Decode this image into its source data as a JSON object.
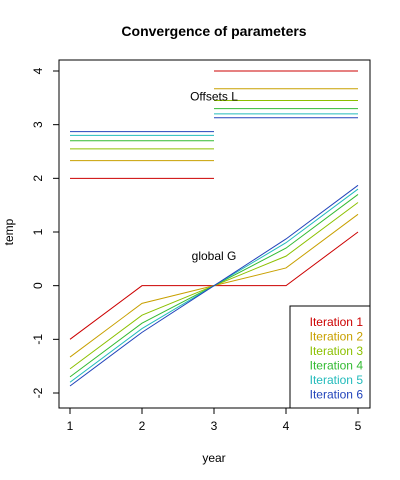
{
  "chart_data": {
    "type": "line",
    "title": "Convergence of parameters",
    "xlabel": "year",
    "ylabel": "temp",
    "xlim": [
      1,
      5
    ],
    "ylim": [
      -2,
      4
    ],
    "x_ticks": [
      1,
      2,
      3,
      4,
      5
    ],
    "y_ticks": [
      -2,
      -1,
      0,
      1,
      2,
      3,
      4
    ],
    "grid": false,
    "legend_position": "bottom-right",
    "annotations": [
      {
        "text": "Offsets L",
        "x": 3.0,
        "y": 3.45
      },
      {
        "text": "global G",
        "x": 3.0,
        "y": 0.48
      }
    ],
    "series": [
      {
        "name": "Iteration 1",
        "color": "#cc0000",
        "x": [
          1,
          2,
          3,
          4,
          5
        ],
        "values": [
          -1.0,
          0.0,
          0.0,
          0.0,
          1.0
        ],
        "offsets": [
          {
            "x": [
              1,
              3
            ],
            "y": 2.0
          },
          {
            "x": [
              3,
              5
            ],
            "y": 4.0
          }
        ]
      },
      {
        "name": "Iteration 2",
        "color": "#c8a000",
        "x": [
          1,
          2,
          3,
          4,
          5
        ],
        "values": [
          -1.33,
          -0.33,
          0.0,
          0.33,
          1.33
        ],
        "offsets": [
          {
            "x": [
              1,
              3
            ],
            "y": 2.33
          },
          {
            "x": [
              3,
              5
            ],
            "y": 3.67
          }
        ]
      },
      {
        "name": "Iteration 3",
        "color": "#8cc000",
        "x": [
          1,
          2,
          3,
          4,
          5
        ],
        "values": [
          -1.55,
          -0.55,
          0.0,
          0.55,
          1.55
        ],
        "offsets": [
          {
            "x": [
              1,
              3
            ],
            "y": 2.55
          },
          {
            "x": [
              3,
              5
            ],
            "y": 3.45
          }
        ]
      },
      {
        "name": "Iteration 4",
        "color": "#33bb33",
        "x": [
          1,
          2,
          3,
          4,
          5
        ],
        "values": [
          -1.7,
          -0.7,
          0.0,
          0.7,
          1.7
        ],
        "offsets": [
          {
            "x": [
              1,
              3
            ],
            "y": 2.7
          },
          {
            "x": [
              3,
              5
            ],
            "y": 3.3
          }
        ]
      },
      {
        "name": "Iteration 5",
        "color": "#22bbbb",
        "x": [
          1,
          2,
          3,
          4,
          5
        ],
        "values": [
          -1.8,
          -0.8,
          0.0,
          0.8,
          1.8
        ],
        "offsets": [
          {
            "x": [
              1,
              3
            ],
            "y": 2.8
          },
          {
            "x": [
              3,
              5
            ],
            "y": 3.2
          }
        ]
      },
      {
        "name": "Iteration 6",
        "color": "#2244bb",
        "x": [
          1,
          2,
          3,
          4,
          5
        ],
        "values": [
          -1.87,
          -0.87,
          0.0,
          0.87,
          1.87
        ],
        "offsets": [
          {
            "x": [
              1,
              3
            ],
            "y": 2.87
          },
          {
            "x": [
              3,
              5
            ],
            "y": 3.13
          }
        ]
      }
    ]
  }
}
